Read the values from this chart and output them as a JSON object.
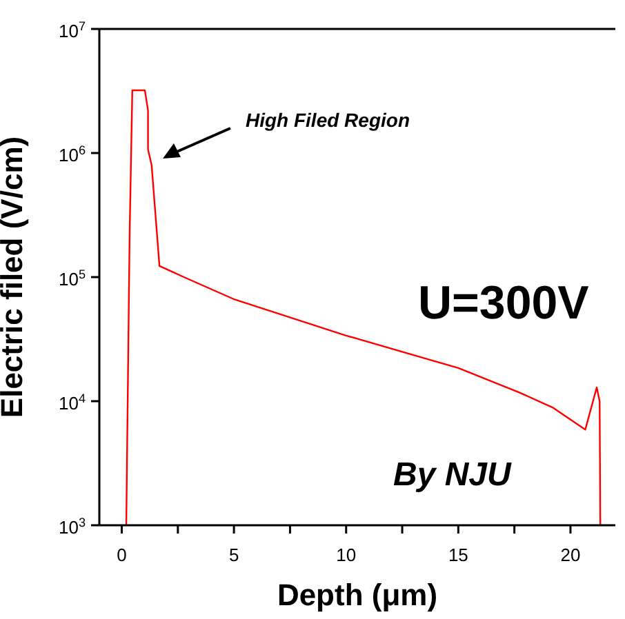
{
  "chart_data": {
    "type": "line",
    "xlabel": "Depth (μm)",
    "ylabel": "Electric filed (V/cm)",
    "annotations": [
      "High Filed Region",
      "U=300V",
      "By NJU"
    ],
    "x": [
      0.2,
      0.35,
      0.47,
      1.03,
      1.17,
      1.17,
      1.33,
      1.68,
      2.77,
      5.03,
      9.95,
      15.0,
      17.7,
      19.2,
      20.66,
      21.17,
      21.3,
      21.33
    ],
    "series": [
      {
        "color": "#ff0000",
        "values": [
          1000,
          220000,
          3200000,
          3200000,
          2200000,
          1070000,
          800000,
          123000,
          100000,
          66000,
          34000,
          18500,
          11800,
          8900,
          5900,
          12900,
          10000,
          1000
        ]
      }
    ],
    "log": "y",
    "xlim": [
      -1,
      22
    ],
    "ylim": [
      1000,
      10000000
    ],
    "xticks": [
      0,
      {
        "value": 2.5,
        "label": null
      },
      5,
      {
        "value": 7.5,
        "label": null
      },
      10,
      {
        "value": 12.5,
        "label": null
      },
      15,
      {
        "value": 17.5,
        "label": null
      },
      20
    ],
    "yticks": [
      {
        "value": 1000,
        "label": "10$^{3}$"
      },
      {
        "value": 10000,
        "label": "10$^{4}$"
      },
      {
        "value": 100000,
        "label": "10$^{5}$"
      },
      {
        "value": 1000000,
        "label": "10$^{6}$"
      },
      {
        "value": 10000000,
        "label": "10$^{7}$"
      }
    ],
    "grid": false,
    "legend": false,
    "marker": "none",
    "line_style": "solid"
  }
}
